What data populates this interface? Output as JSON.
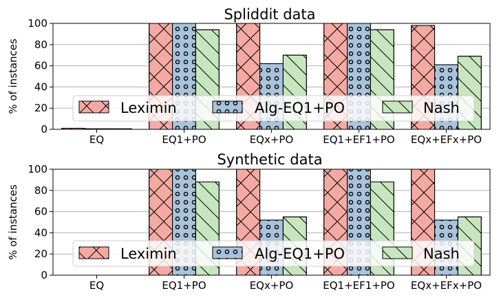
{
  "chart_data": [
    {
      "type": "bar",
      "title": "Spliddit data",
      "xlabel": "",
      "ylabel": "% of instances",
      "ylim": [
        0,
        100
      ],
      "yticks": [
        0,
        20,
        40,
        60,
        80,
        100
      ],
      "grid": "horizontal",
      "legend": "center",
      "categories": [
        "EQ",
        "EQ1+PO",
        "EQx+PO",
        "EQ1+EF1+PO",
        "EQx+EFx+PO"
      ],
      "series": [
        {
          "name": "Leximin",
          "color": "#f4aaa3",
          "hatch": "cross",
          "values": [
            1,
            100,
            100,
            100,
            98
          ]
        },
        {
          "name": "Alg-EQ1+PO",
          "color": "#a9c3dc",
          "hatch": "dots",
          "values": [
            0.5,
            100,
            62,
            100,
            61
          ]
        },
        {
          "name": "Nash",
          "color": "#c7e6bf",
          "hatch": "diag",
          "values": [
            0.5,
            94,
            70,
            94,
            69
          ]
        }
      ]
    },
    {
      "type": "bar",
      "title": "Synthetic data",
      "xlabel": "",
      "ylabel": "% of instances",
      "ylim": [
        0,
        100
      ],
      "yticks": [
        0,
        20,
        40,
        60,
        80,
        100
      ],
      "grid": "horizontal",
      "legend": "center",
      "categories": [
        "EQ",
        "EQ1+PO",
        "EQx+PO",
        "EQ1+EF1+PO",
        "EQx+EFx+PO"
      ],
      "series": [
        {
          "name": "Leximin",
          "color": "#f4aaa3",
          "hatch": "cross",
          "values": [
            0,
            100,
            100,
            100,
            100
          ]
        },
        {
          "name": "Alg-EQ1+PO",
          "color": "#a9c3dc",
          "hatch": "dots",
          "values": [
            0,
            100,
            52,
            100,
            52
          ]
        },
        {
          "name": "Nash",
          "color": "#c7e6bf",
          "hatch": "diag",
          "values": [
            0,
            88,
            55,
            88,
            55
          ]
        }
      ]
    }
  ]
}
